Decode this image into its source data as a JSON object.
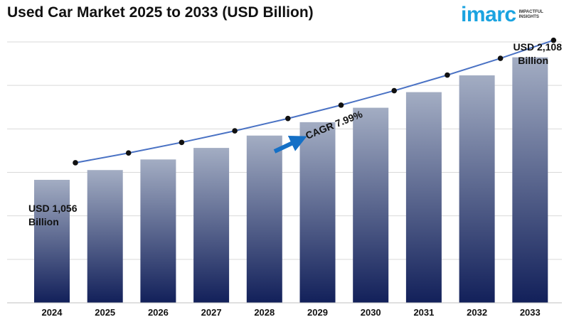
{
  "title": "Used Car Market 2025 to 2033 (USD Billion)",
  "logo": {
    "word": "imarc",
    "tagline_1": "IMPACTFUL",
    "tagline_2": "INSIGHTS"
  },
  "chart_data": {
    "type": "bar",
    "title": "Used Car Market 2025 to 2033 (USD Billion)",
    "categories": [
      "2024",
      "2025",
      "2026",
      "2027",
      "2028",
      "2029",
      "2030",
      "2031",
      "2032",
      "2033"
    ],
    "values": [
      1056,
      1140,
      1231,
      1330,
      1436,
      1551,
      1675,
      1809,
      1953,
      2108
    ],
    "ylim": [
      0,
      2240
    ],
    "grid": true,
    "colors": {
      "bar_top": "#a3adc3",
      "bar_bottom": "#12205a",
      "line": "#4a72c4",
      "marker": "#111111",
      "arrow": "#1570c6"
    },
    "annotations": {
      "start_value_line1": "USD 1,056",
      "start_value_line2": "Billion",
      "end_value_line1": "USD 2,108",
      "end_value_line2": "Billion",
      "cagr": "CAGR 7.99%"
    }
  }
}
